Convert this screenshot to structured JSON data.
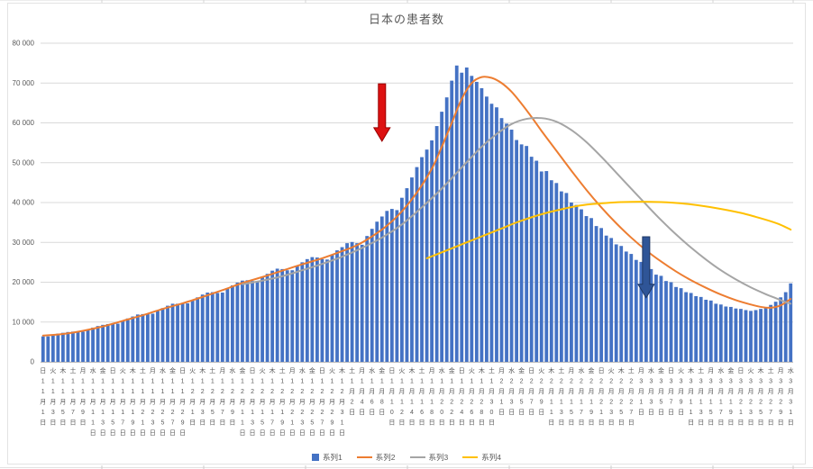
{
  "title": "日本の患者数",
  "colors": {
    "bar": "#4472C4",
    "line2": "#ED7D31",
    "line3": "#A5A5A5",
    "line4": "#FFC000",
    "grid": "#D9D9D9",
    "axis_line": "#BFBFBF",
    "axis_text": "#595959",
    "arrow_red": "#DD1111",
    "arrow_blue": "#2F5597"
  },
  "legend": {
    "items": [
      {
        "label": "系列1",
        "marker": "bar",
        "color": "#4472C4"
      },
      {
        "label": "系列2",
        "marker": "line",
        "color": "#ED7D31"
      },
      {
        "label": "系列3",
        "marker": "line",
        "color": "#A5A5A5"
      },
      {
        "label": "系列4",
        "marker": "line",
        "color": "#FFC000"
      }
    ]
  },
  "y_axis": {
    "min": 0,
    "max": 80000,
    "step": 10000,
    "labels": [
      "0",
      "10 000",
      "20 000",
      "30 000",
      "40 000",
      "50 000",
      "60 000",
      "70 000",
      "80 000"
    ]
  },
  "chart_data": {
    "type": "bar",
    "title": "日本の患者数",
    "ylim": [
      0,
      80000
    ],
    "grid": true,
    "legend_position": "bottom",
    "n_points": 151,
    "x_tick_every": 2,
    "x_labels": [
      [
        "日",
        "11",
        "1"
      ],
      [
        "火",
        "11",
        "3"
      ],
      [
        "木",
        "11",
        "5"
      ],
      [
        "土",
        "11",
        "7"
      ],
      [
        "月",
        "11",
        "9"
      ],
      [
        "水",
        "11",
        "11"
      ],
      [
        "金",
        "11",
        "13"
      ],
      [
        "日",
        "11",
        "15"
      ],
      [
        "火",
        "11",
        "17"
      ],
      [
        "木",
        "11",
        "19"
      ],
      [
        "土",
        "11",
        "21"
      ],
      [
        "月",
        "11",
        "23"
      ],
      [
        "水",
        "11",
        "25"
      ],
      [
        "金",
        "11",
        "27"
      ],
      [
        "日",
        "11",
        "29"
      ],
      [
        "火",
        "12",
        "1"
      ],
      [
        "木",
        "12",
        "3"
      ],
      [
        "土",
        "12",
        "5"
      ],
      [
        "月",
        "12",
        "7"
      ],
      [
        "水",
        "12",
        "9"
      ],
      [
        "金",
        "12",
        "11"
      ],
      [
        "日",
        "12",
        "13"
      ],
      [
        "火",
        "12",
        "15"
      ],
      [
        "木",
        "12",
        "17"
      ],
      [
        "土",
        "12",
        "19"
      ],
      [
        "月",
        "12",
        "21"
      ],
      [
        "水",
        "12",
        "23"
      ],
      [
        "金",
        "12",
        "25"
      ],
      [
        "日",
        "12",
        "27"
      ],
      [
        "火",
        "12",
        "29"
      ],
      [
        "木",
        "12",
        "31"
      ],
      [
        "土",
        "1",
        "2"
      ],
      [
        "月",
        "1",
        "4"
      ],
      [
        "水",
        "1",
        "6"
      ],
      [
        "金",
        "1",
        "8"
      ],
      [
        "日",
        "1",
        "10"
      ],
      [
        "火",
        "1",
        "12"
      ],
      [
        "木",
        "1",
        "14"
      ],
      [
        "土",
        "1",
        "16"
      ],
      [
        "月",
        "1",
        "18"
      ],
      [
        "水",
        "1",
        "20"
      ],
      [
        "金",
        "1",
        "22"
      ],
      [
        "日",
        "1",
        "24"
      ],
      [
        "火",
        "1",
        "26"
      ],
      [
        "木",
        "1",
        "28"
      ],
      [
        "土",
        "1",
        "30"
      ],
      [
        "月",
        "2",
        "1"
      ],
      [
        "水",
        "2",
        "3"
      ],
      [
        "金",
        "2",
        "5"
      ],
      [
        "日",
        "2",
        "7"
      ],
      [
        "火",
        "2",
        "9"
      ],
      [
        "木",
        "2",
        "11"
      ],
      [
        "土",
        "2",
        "13"
      ],
      [
        "月",
        "2",
        "15"
      ],
      [
        "水",
        "2",
        "17"
      ],
      [
        "金",
        "2",
        "19"
      ],
      [
        "日",
        "2",
        "21"
      ],
      [
        "火",
        "2",
        "23"
      ],
      [
        "木",
        "2",
        "25"
      ],
      [
        "土",
        "2",
        "27"
      ],
      [
        "月",
        "3",
        "1"
      ],
      [
        "水",
        "3",
        "3"
      ],
      [
        "金",
        "3",
        "5"
      ],
      [
        "日",
        "3",
        "7"
      ],
      [
        "火",
        "3",
        "9"
      ],
      [
        "木",
        "3",
        "11"
      ],
      [
        "土",
        "3",
        "13"
      ],
      [
        "月",
        "3",
        "15"
      ],
      [
        "水",
        "3",
        "17"
      ],
      [
        "金",
        "3",
        "19"
      ],
      [
        "日",
        "3",
        "21"
      ],
      [
        "火",
        "3",
        "23"
      ],
      [
        "木",
        "3",
        "25"
      ],
      [
        "土",
        "3",
        "27"
      ],
      [
        "月",
        "3",
        "29"
      ],
      [
        "水",
        "3",
        "31"
      ]
    ],
    "series": [
      {
        "name": "系列1",
        "type": "bar",
        "color": "#4472C4",
        "values": [
          6400,
          6400,
          6700,
          7100,
          7300,
          7500,
          7600,
          7500,
          7600,
          8100,
          8600,
          9000,
          9300,
          9500,
          9500,
          9600,
          10200,
          10900,
          11400,
          11900,
          12000,
          12000,
          12100,
          12800,
          13500,
          14100,
          14600,
          14600,
          14600,
          14700,
          15400,
          16200,
          16900,
          17400,
          17500,
          17300,
          17400,
          18300,
          19200,
          19900,
          20400,
          20500,
          20300,
          20300,
          21200,
          22100,
          22900,
          23400,
          23300,
          23000,
          23000,
          24000,
          25000,
          25800,
          26300,
          26200,
          25800,
          25700,
          26800,
          28000,
          28800,
          29800,
          30100,
          29800,
          29400,
          31600,
          33400,
          35200,
          36500,
          37900,
          38400,
          38100,
          41200,
          43600,
          46300,
          48900,
          51400,
          53300,
          55600,
          59200,
          62800,
          66400,
          70600,
          74400,
          72600,
          73900,
          71800,
          70300,
          68700,
          66600,
          64800,
          63900,
          61200,
          59800,
          58300,
          55700,
          54600,
          54200,
          51500,
          50500,
          47800,
          47900,
          45600,
          44900,
          42800,
          42400,
          40000,
          39400,
          38300,
          36600,
          36100,
          34100,
          33600,
          31700,
          31100,
          29500,
          29100,
          27700,
          27100,
          25600,
          25100,
          23600,
          23300,
          21900,
          21600,
          20300,
          20000,
          18800,
          18500,
          17500,
          17300,
          16500,
          16300,
          15600,
          15400,
          14600,
          14400,
          13900,
          13800,
          13400,
          13300,
          13000,
          12800,
          13000,
          13300,
          13700,
          14300,
          15100,
          16200,
          17500,
          19700
        ]
      },
      {
        "name": "系列2",
        "type": "line",
        "color": "#ED7D31",
        "points": [
          [
            0,
            6600
          ],
          [
            4,
            7000
          ],
          [
            8,
            7800
          ],
          [
            12,
            8900
          ],
          [
            16,
            10300
          ],
          [
            20,
            11700
          ],
          [
            24,
            13300
          ],
          [
            28,
            14700
          ],
          [
            32,
            16300
          ],
          [
            36,
            18000
          ],
          [
            40,
            19800
          ],
          [
            44,
            21300
          ],
          [
            48,
            22900
          ],
          [
            52,
            24500
          ],
          [
            56,
            26000
          ],
          [
            60,
            27800
          ],
          [
            63,
            29300
          ],
          [
            66,
            31500
          ],
          [
            69,
            34200
          ],
          [
            72,
            37800
          ],
          [
            75,
            42500
          ],
          [
            78,
            48500
          ],
          [
            80,
            54000
          ],
          [
            82,
            60000
          ],
          [
            84,
            66000
          ],
          [
            86,
            70000
          ],
          [
            88,
            71500
          ],
          [
            90,
            71300
          ],
          [
            92,
            70000
          ],
          [
            94,
            67800
          ],
          [
            96,
            64800
          ],
          [
            98,
            61500
          ],
          [
            100,
            58000
          ],
          [
            103,
            53000
          ],
          [
            106,
            48000
          ],
          [
            109,
            43200
          ],
          [
            112,
            38800
          ],
          [
            115,
            34800
          ],
          [
            118,
            31200
          ],
          [
            121,
            28000
          ],
          [
            124,
            25200
          ],
          [
            127,
            22700
          ],
          [
            130,
            20500
          ],
          [
            133,
            18600
          ],
          [
            136,
            16900
          ],
          [
            139,
            15500
          ],
          [
            142,
            14400
          ],
          [
            144,
            13800
          ],
          [
            146,
            13600
          ],
          [
            148,
            14200
          ],
          [
            150,
            15800
          ]
        ]
      },
      {
        "name": "系列3",
        "type": "line",
        "color": "#A5A5A5",
        "points": [
          [
            40,
            19500
          ],
          [
            44,
            20400
          ],
          [
            48,
            21500
          ],
          [
            52,
            23000
          ],
          [
            56,
            24600
          ],
          [
            60,
            26400
          ],
          [
            64,
            28600
          ],
          [
            68,
            31200
          ],
          [
            72,
            34500
          ],
          [
            76,
            38800
          ],
          [
            80,
            43500
          ],
          [
            84,
            48800
          ],
          [
            88,
            54000
          ],
          [
            91,
            57200
          ],
          [
            94,
            59700
          ],
          [
            97,
            61000
          ],
          [
            100,
            61200
          ],
          [
            103,
            60300
          ],
          [
            106,
            58200
          ],
          [
            109,
            55200
          ],
          [
            112,
            51500
          ],
          [
            115,
            47500
          ],
          [
            118,
            43500
          ],
          [
            121,
            39500
          ],
          [
            124,
            35600
          ],
          [
            127,
            32000
          ],
          [
            130,
            28700
          ],
          [
            133,
            25700
          ],
          [
            136,
            23000
          ],
          [
            139,
            20700
          ],
          [
            142,
            18700
          ],
          [
            145,
            17000
          ],
          [
            147,
            16000
          ],
          [
            149,
            15000
          ],
          [
            150,
            14600
          ]
        ]
      },
      {
        "name": "系列4",
        "type": "line",
        "color": "#FFC000",
        "points": [
          [
            77,
            26000
          ],
          [
            80,
            27500
          ],
          [
            83,
            29000
          ],
          [
            86,
            30500
          ],
          [
            89,
            32000
          ],
          [
            92,
            33500
          ],
          [
            95,
            35000
          ],
          [
            98,
            36300
          ],
          [
            101,
            37400
          ],
          [
            104,
            38300
          ],
          [
            107,
            39100
          ],
          [
            110,
            39600
          ],
          [
            113,
            39900
          ],
          [
            116,
            40100
          ],
          [
            120,
            40200
          ],
          [
            124,
            40100
          ],
          [
            128,
            39800
          ],
          [
            132,
            39200
          ],
          [
            136,
            38400
          ],
          [
            140,
            37400
          ],
          [
            143,
            36400
          ],
          [
            146,
            35300
          ],
          [
            148,
            34400
          ],
          [
            150,
            33200
          ]
        ]
      }
    ],
    "annotations": [
      {
        "type": "arrow-down",
        "name": "red-arrow",
        "color": "#DD1111",
        "stroke": "#990000",
        "x_index": 68,
        "y_from": 69800,
        "y_to": 55400
      },
      {
        "type": "arrow-down",
        "name": "blue-arrow",
        "color": "#2F5597",
        "stroke": "#1F3864",
        "x_index": 121,
        "y_from": 31400,
        "y_to": 16100
      }
    ]
  }
}
